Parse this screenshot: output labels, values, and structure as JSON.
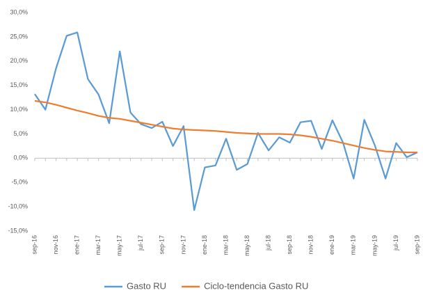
{
  "chart_data": {
    "type": "line",
    "categories": [
      "sep-16",
      null,
      "nov-16",
      null,
      "ene-17",
      null,
      "mar-17",
      null,
      "may-17",
      null,
      "jul-17",
      null,
      "sep-17",
      null,
      "nov-17",
      null,
      "ene-18",
      null,
      "mar-18",
      null,
      "may-18",
      null,
      "jul-18",
      null,
      "sep-18",
      null,
      "nov-18",
      null,
      "ene-19",
      null,
      "mar-19",
      null,
      "may-19",
      null,
      "jul-19",
      null,
      "sep-19"
    ],
    "series": [
      {
        "name": "Gasto  RU",
        "color": "#5b9bd5",
        "values": [
          13.2,
          10.0,
          18.5,
          25.2,
          25.9,
          16.3,
          13.1,
          7.2,
          22.0,
          9.4,
          7.0,
          6.2,
          7.5,
          2.5,
          6.6,
          -10.7,
          -1.9,
          -1.5,
          4.0,
          -2.4,
          -1.2,
          5.2,
          1.6,
          4.3,
          3.2,
          7.4,
          7.7,
          1.9,
          7.8,
          3.2,
          -4.2,
          7.9,
          2.6,
          -4.2,
          3.1,
          0.2,
          1.2
        ]
      },
      {
        "name": "Ciclo-tendencia Gasto  RU",
        "color": "#ed7d31",
        "values": [
          11.8,
          11.5,
          11.0,
          10.4,
          9.8,
          9.3,
          8.7,
          8.3,
          8.1,
          7.7,
          7.3,
          6.9,
          6.5,
          6.1,
          5.9,
          5.8,
          5.7,
          5.6,
          5.4,
          5.2,
          5.1,
          5.0,
          5.0,
          5.0,
          4.9,
          4.7,
          4.4,
          4.0,
          3.6,
          3.1,
          2.6,
          2.1,
          1.7,
          1.4,
          1.3,
          1.2,
          1.2
        ]
      }
    ],
    "ylim": [
      -15,
      30
    ],
    "yticks": [
      {
        "value": -15,
        "label": "-15,0%"
      },
      {
        "value": -10,
        "label": "-10,0%"
      },
      {
        "value": -5,
        "label": "-5,0%"
      },
      {
        "value": 0,
        "label": "0,0%"
      },
      {
        "value": 5,
        "label": "5,0%"
      },
      {
        "value": 10,
        "label": "10,0%"
      },
      {
        "value": 15,
        "label": "15,0%"
      },
      {
        "value": 20,
        "label": "20,0%"
      },
      {
        "value": 25,
        "label": "25,0%"
      },
      {
        "value": 30,
        "label": "30,0%"
      }
    ],
    "grid": false,
    "legend": "bottom"
  }
}
